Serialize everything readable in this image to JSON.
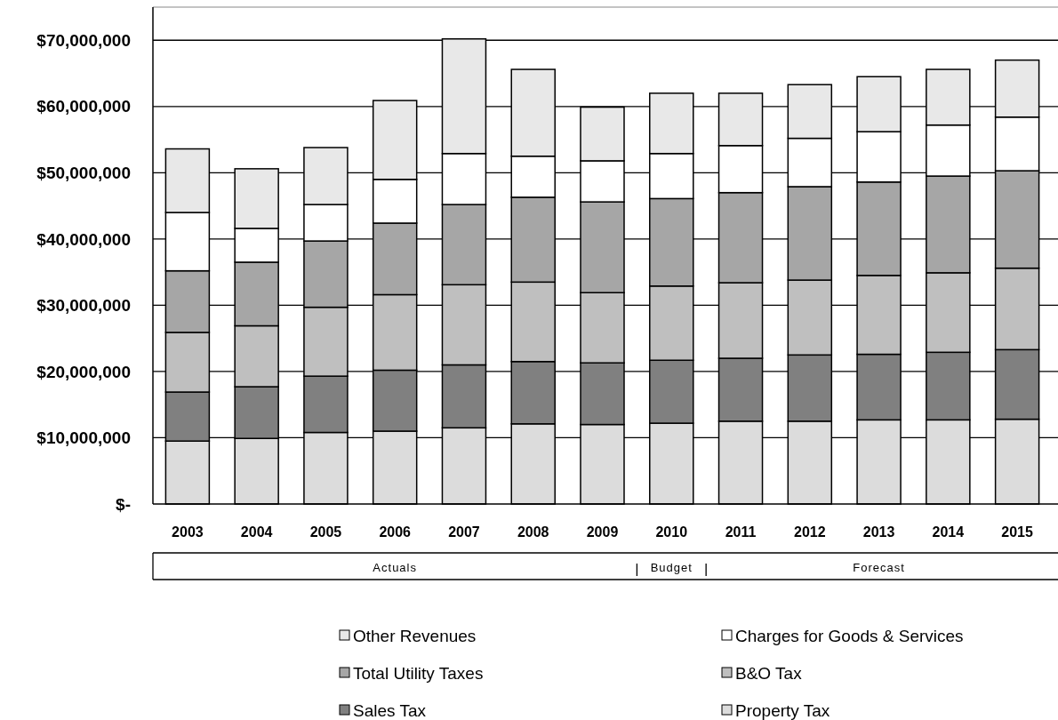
{
  "chart_data": {
    "type": "bar",
    "stacked": true,
    "categories": [
      "2003",
      "2004",
      "2005",
      "2006",
      "2007",
      "2008",
      "2009",
      "2010",
      "2011",
      "2012",
      "2013",
      "2014",
      "2015"
    ],
    "series": [
      {
        "name": "Property Tax",
        "color": "#dcdcdc",
        "values": [
          9500000,
          9900000,
          10800000,
          11000000,
          11500000,
          12100000,
          12000000,
          12200000,
          12500000,
          12500000,
          12700000,
          12700000,
          12800000
        ]
      },
      {
        "name": "Sales Tax",
        "color": "#808080",
        "values": [
          7400000,
          7800000,
          8500000,
          9200000,
          9500000,
          9400000,
          9300000,
          9500000,
          9500000,
          10000000,
          9900000,
          10200000,
          10500000
        ]
      },
      {
        "name": "B&O Tax",
        "color": "#bfbfbf",
        "values": [
          9000000,
          9200000,
          10400000,
          11400000,
          12100000,
          12000000,
          10600000,
          11200000,
          11400000,
          11300000,
          11900000,
          12000000,
          12300000
        ]
      },
      {
        "name": "Total Utility Taxes",
        "color": "#a6a6a6",
        "values": [
          9300000,
          9600000,
          10000000,
          10800000,
          12100000,
          12800000,
          13700000,
          13200000,
          13600000,
          14100000,
          14100000,
          14600000,
          14700000
        ]
      },
      {
        "name": "Charges for Goods & Services",
        "color": "#ffffff",
        "values": [
          8800000,
          5100000,
          5500000,
          6600000,
          7700000,
          6200000,
          6200000,
          6800000,
          7100000,
          7300000,
          7600000,
          7700000,
          8100000
        ]
      },
      {
        "name": "Other Revenues",
        "color": "#e8e8e8",
        "values": [
          9600000,
          9000000,
          8600000,
          11900000,
          17300000,
          13100000,
          8100000,
          9100000,
          7900000,
          8100000,
          8300000,
          8400000,
          8600000
        ]
      }
    ],
    "ylim": [
      0,
      75000000
    ],
    "yticks": [
      {
        "value": 0,
        "label": "$-"
      },
      {
        "value": 10000000,
        "label": "$10,000,000"
      },
      {
        "value": 20000000,
        "label": "$20,000,000"
      },
      {
        "value": 30000000,
        "label": "$30,000,000"
      },
      {
        "value": 40000000,
        "label": "$40,000,000"
      },
      {
        "value": 50000000,
        "label": "$50,000,000"
      },
      {
        "value": 60000000,
        "label": "$60,000,000"
      },
      {
        "value": 70000000,
        "label": "$70,000,000"
      }
    ],
    "grid": "y",
    "legend": "bottom",
    "annotations": [
      "Actuals",
      "Budget",
      "Forecast"
    ]
  }
}
